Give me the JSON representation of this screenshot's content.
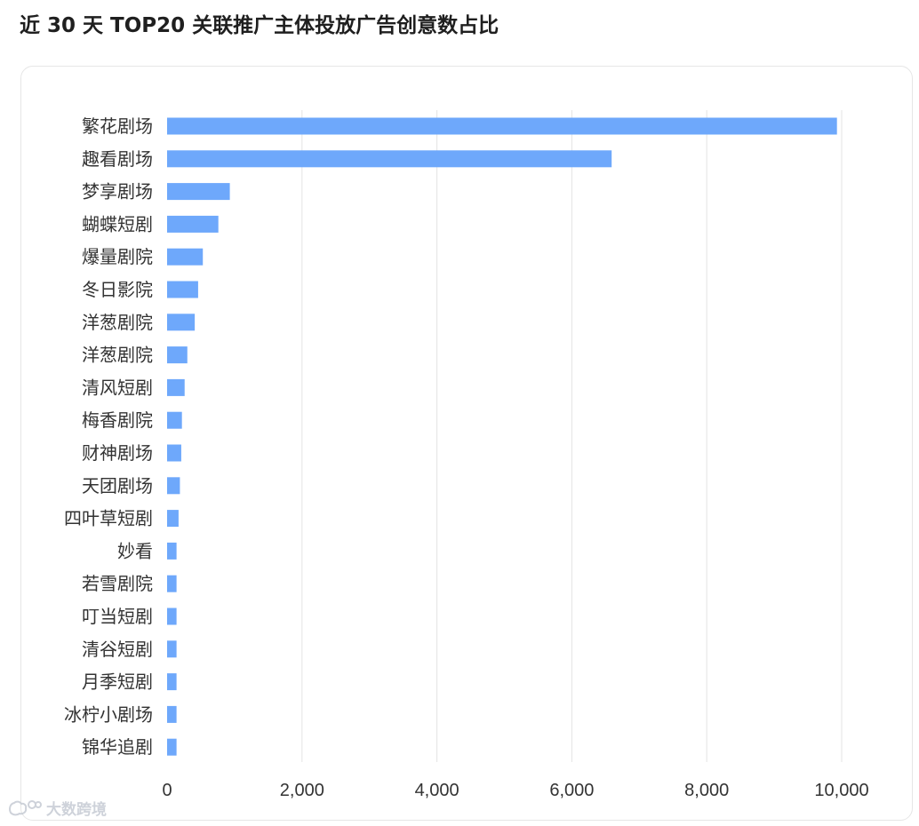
{
  "title": "近 30 天 TOP20 关联推广主体投放广告创意数占比",
  "watermark": {
    "text": "大数跨境",
    "icon": "chat-bubble-logo-icon"
  },
  "colors": {
    "bar": "#6ea8fb",
    "grid": "#e3e3e3",
    "text": "#333333"
  },
  "chart_data": {
    "type": "bar",
    "orientation": "horizontal",
    "categories": [
      "繁花剧场",
      "趣看剧场",
      "梦享剧场",
      "蝴蝶短剧",
      "爆量剧院",
      "冬日影院",
      "洋葱剧院",
      "洋葱剧院",
      "清风短剧",
      "梅香剧院",
      "财神剧场",
      "天团剧场",
      "四叶草短剧",
      "妙看",
      "若雪剧院",
      "叮当短剧",
      "清谷短剧",
      "月季短剧",
      "冰柠小剧场",
      "锦华追剧"
    ],
    "values": [
      9930,
      6590,
      930,
      760,
      530,
      460,
      410,
      300,
      260,
      220,
      210,
      190,
      170,
      140,
      140,
      140,
      140,
      140,
      140,
      140
    ],
    "xlim": [
      0,
      10000
    ],
    "xticks": [
      0,
      2000,
      4000,
      6000,
      8000,
      10000
    ],
    "xtick_labels": [
      "0",
      "2,000",
      "4,000",
      "6,000",
      "8,000",
      "10,000"
    ],
    "grid": "vertical",
    "legend": "none"
  }
}
